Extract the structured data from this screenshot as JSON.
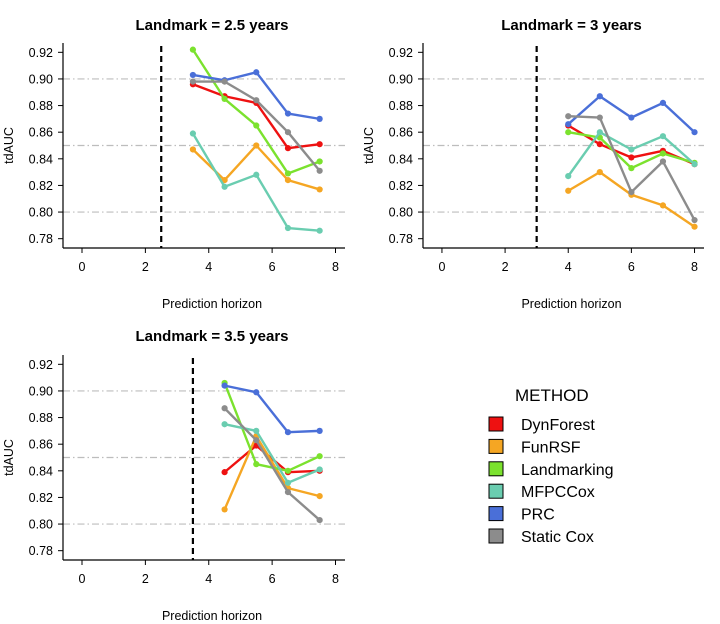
{
  "figure": {
    "legend": {
      "title": "METHOD",
      "placement": "bottom-right"
    }
  },
  "chart_data": [
    {
      "type": "line",
      "title": "Landmark = 2.5 years",
      "xlabel": "Prediction horizon",
      "ylabel": "tdAUC",
      "xlim": [
        -0.6,
        8.3
      ],
      "ylim": [
        0.773,
        0.927
      ],
      "xticks": [
        "0",
        "2",
        "4",
        "6",
        "8"
      ],
      "yticks": [
        "0.78",
        "0.80",
        "0.82",
        "0.84",
        "0.86",
        "0.88",
        "0.90",
        "0.92"
      ],
      "hlines": [
        0.8,
        0.85,
        0.9
      ],
      "landmark": 2.5,
      "x": [
        3.5,
        4.5,
        5.5,
        6.5,
        7.5
      ],
      "series": [
        {
          "name": "DynForest",
          "color": "#ee1111",
          "values": [
            0.896,
            0.887,
            0.882,
            0.848,
            0.851
          ]
        },
        {
          "name": "FunRSF",
          "color": "#f5a623",
          "values": [
            0.847,
            0.824,
            0.85,
            0.824,
            0.817
          ]
        },
        {
          "name": "Landmarking",
          "color": "#7be22e",
          "values": [
            0.922,
            0.885,
            0.865,
            0.829,
            0.838
          ]
        },
        {
          "name": "MFPCCox",
          "color": "#6acdb0",
          "values": [
            0.859,
            0.819,
            0.828,
            0.788,
            0.786
          ]
        },
        {
          "name": "PRC",
          "color": "#4a6fd8",
          "values": [
            0.903,
            0.899,
            0.905,
            0.874,
            0.87
          ]
        },
        {
          "name": "Static Cox",
          "color": "#8c8c8c",
          "values": [
            0.898,
            0.898,
            0.884,
            0.86,
            0.831
          ]
        }
      ]
    },
    {
      "type": "line",
      "title": "Landmark = 3 years",
      "xlabel": "Prediction horizon",
      "ylabel": "tdAUC",
      "xlim": [
        -0.6,
        8.3
      ],
      "ylim": [
        0.773,
        0.927
      ],
      "xticks": [
        "0",
        "2",
        "4",
        "6",
        "8"
      ],
      "yticks": [
        "0.78",
        "0.80",
        "0.82",
        "0.84",
        "0.86",
        "0.88",
        "0.90",
        "0.92"
      ],
      "hlines": [
        0.8,
        0.85,
        0.9
      ],
      "landmark": 3,
      "x": [
        4,
        5,
        6,
        7,
        8
      ],
      "series": [
        {
          "name": "DynForest",
          "color": "#ee1111",
          "values": [
            0.865,
            0.851,
            0.841,
            0.846,
            0.836
          ]
        },
        {
          "name": "FunRSF",
          "color": "#f5a623",
          "values": [
            0.816,
            0.83,
            0.813,
            0.805,
            0.789
          ]
        },
        {
          "name": "Landmarking",
          "color": "#7be22e",
          "values": [
            0.86,
            0.856,
            0.833,
            0.844,
            0.837
          ]
        },
        {
          "name": "MFPCCox",
          "color": "#6acdb0",
          "values": [
            0.827,
            0.86,
            0.847,
            0.857,
            0.836
          ]
        },
        {
          "name": "PRC",
          "color": "#4a6fd8",
          "values": [
            0.866,
            0.887,
            0.871,
            0.882,
            0.86
          ]
        },
        {
          "name": "Static Cox",
          "color": "#8c8c8c",
          "values": [
            0.872,
            0.871,
            0.815,
            0.838,
            0.794
          ]
        }
      ]
    },
    {
      "type": "line",
      "title": "Landmark = 3.5 years",
      "xlabel": "Prediction horizon",
      "ylabel": "tdAUC",
      "xlim": [
        -0.6,
        8.3
      ],
      "ylim": [
        0.773,
        0.927
      ],
      "xticks": [
        "0",
        "2",
        "4",
        "6",
        "8"
      ],
      "yticks": [
        "0.78",
        "0.80",
        "0.82",
        "0.84",
        "0.86",
        "0.88",
        "0.90",
        "0.92"
      ],
      "hlines": [
        0.8,
        0.85,
        0.9
      ],
      "landmark": 3.5,
      "x": [
        4.5,
        5.5,
        6.5,
        7.5
      ],
      "series": [
        {
          "name": "DynForest",
          "color": "#ee1111",
          "values": [
            0.839,
            0.859,
            0.839,
            0.84
          ]
        },
        {
          "name": "FunRSF",
          "color": "#f5a623",
          "values": [
            0.811,
            0.866,
            0.827,
            0.821
          ]
        },
        {
          "name": "Landmarking",
          "color": "#7be22e",
          "values": [
            0.906,
            0.845,
            0.84,
            0.851
          ]
        },
        {
          "name": "MFPCCox",
          "color": "#6acdb0",
          "values": [
            0.875,
            0.87,
            0.831,
            0.841
          ]
        },
        {
          "name": "PRC",
          "color": "#4a6fd8",
          "values": [
            0.904,
            0.899,
            0.869,
            0.87
          ]
        },
        {
          "name": "Static Cox",
          "color": "#8c8c8c",
          "values": [
            0.887,
            0.863,
            0.824,
            0.803
          ]
        }
      ]
    }
  ]
}
